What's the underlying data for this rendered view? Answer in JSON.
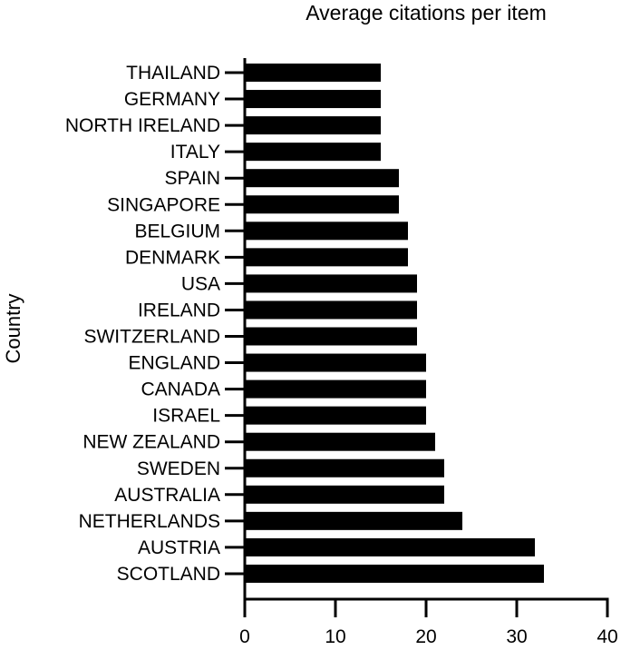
{
  "chart_data": {
    "type": "bar",
    "orientation": "horizontal",
    "title": "Average citations per item",
    "xlabel": "",
    "ylabel": "Country",
    "xlim": [
      0,
      40
    ],
    "xticks": [
      0,
      10,
      20,
      30,
      40
    ],
    "grid": false,
    "bar_color": "#000000",
    "categories": [
      "THAILAND",
      "GERMANY",
      "NORTH IRELAND",
      "ITALY",
      "SPAIN",
      "SINGAPORE",
      "BELGIUM",
      "DENMARK",
      "USA",
      "IRELAND",
      "SWITZERLAND",
      "ENGLAND",
      "CANADA",
      "ISRAEL",
      "NEW ZEALAND",
      "SWEDEN",
      "AUSTRALIA",
      "NETHERLANDS",
      "AUSTRIA",
      "SCOTLAND"
    ],
    "values": [
      15,
      15,
      15,
      15,
      17,
      17,
      18,
      18,
      19,
      19,
      19,
      20,
      20,
      20,
      21,
      22,
      22,
      24,
      32,
      33
    ]
  }
}
